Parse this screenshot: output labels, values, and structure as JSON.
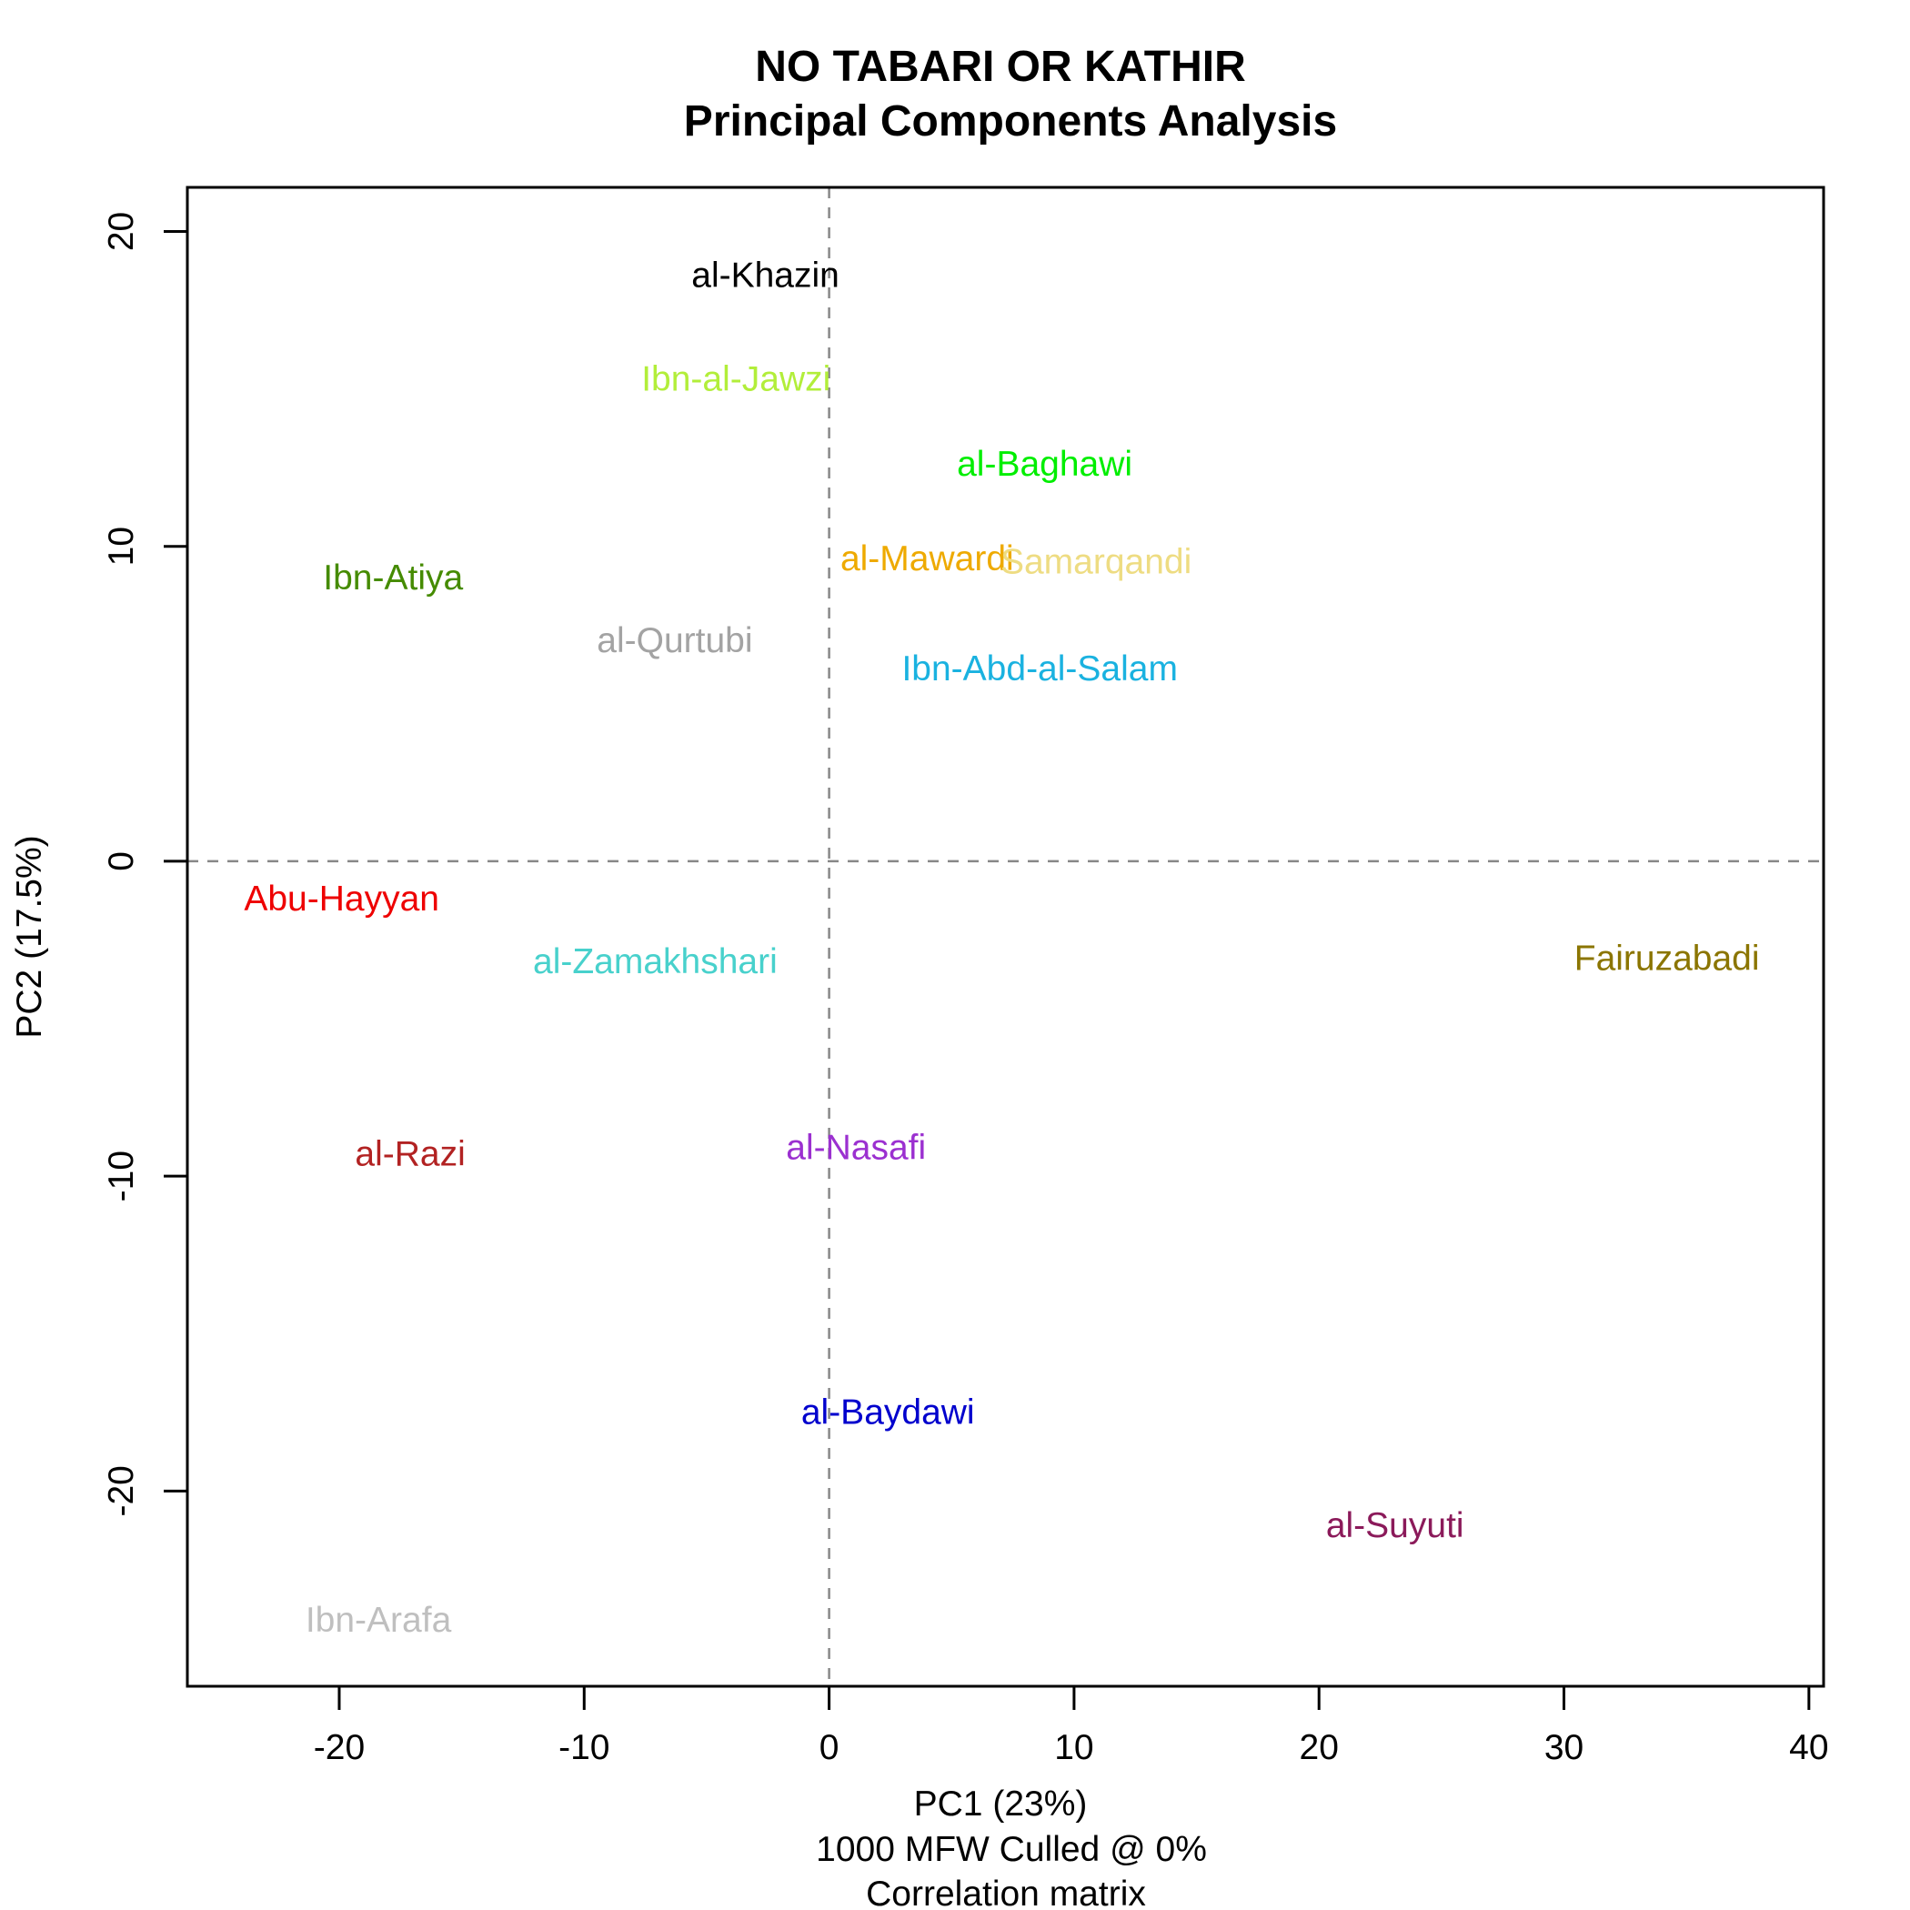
{
  "chart_data": {
    "type": "scatter",
    "title_line1": "NO TABARI OR KATHIR",
    "title_line2": "Principal Components Analysis",
    "xlabel": "PC1 (23%)",
    "xlabel_line2": "1000 MFW  Culled @ 0%",
    "xlabel_line3": "Correlation matrix",
    "ylabel": "PC2 (17.5%)",
    "xlim": [
      -26.2,
      40.6
    ],
    "ylim": [
      -26.2,
      21.4
    ],
    "x_ticks": [
      -20,
      -10,
      0,
      10,
      20,
      30,
      40
    ],
    "y_ticks": [
      -20,
      -10,
      0,
      10,
      20
    ],
    "reference_lines": {
      "x": 0,
      "y": 0,
      "style": "dashed",
      "color": "#888888"
    },
    "grid": false,
    "legend": "none",
    "points": [
      {
        "label": "al-Khazin",
        "x": -2.6,
        "y": 18.6,
        "color": "#000000"
      },
      {
        "label": "Ibn-al-Jawzi",
        "x": -3.8,
        "y": 15.3,
        "color": "#b2ee3a"
      },
      {
        "label": "al-Baghawi",
        "x": 8.8,
        "y": 12.6,
        "color": "#00ee00"
      },
      {
        "label": "Ibn-Atiya",
        "x": -17.8,
        "y": 9.0,
        "color": "#458b00"
      },
      {
        "label": "al-Mawardi",
        "x": 4.0,
        "y": 9.6,
        "color": "#eeaa00"
      },
      {
        "label": "Samarqandi",
        "x": 10.9,
        "y": 9.5,
        "color": "#eedc82"
      },
      {
        "label": "al-Qurtubi",
        "x": -6.3,
        "y": 7.0,
        "color": "#a3a3a3"
      },
      {
        "label": "Ibn-Abd-al-Salam",
        "x": 8.6,
        "y": 6.1,
        "color": "#1ab2e0"
      },
      {
        "label": "Abu-Hayyan",
        "x": -19.9,
        "y": -1.2,
        "color": "#ee0000"
      },
      {
        "label": "al-Zamakhshari",
        "x": -7.1,
        "y": -3.2,
        "color": "#48d1cc"
      },
      {
        "label": "Fairuzabadi",
        "x": 34.2,
        "y": -3.1,
        "color": "#8b7500"
      },
      {
        "label": "al-Razi",
        "x": -17.1,
        "y": -9.3,
        "color": "#b22222"
      },
      {
        "label": "al-Nasafi",
        "x": 1.1,
        "y": -9.1,
        "color": "#9b30d0"
      },
      {
        "label": "al-Baydawi",
        "x": 2.4,
        "y": -17.5,
        "color": "#0000cd"
      },
      {
        "label": "al-Suyuti",
        "x": 23.1,
        "y": -21.1,
        "color": "#8b1a5a"
      },
      {
        "label": "Ibn-Arafa",
        "x": -18.4,
        "y": -24.1,
        "color": "#bfbfbf"
      }
    ]
  }
}
